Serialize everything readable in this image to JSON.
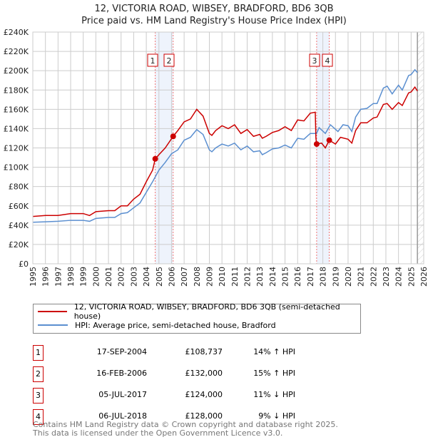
{
  "chart_data": {
    "type": "line",
    "title": "12, VICTORIA ROAD, WIBSEY, BRADFORD, BD6 3QB",
    "subtitle": "Price paid vs. HM Land Registry's House Price Index (HPI)",
    "xlim": [
      1995,
      2026
    ],
    "ylim": [
      0,
      240000
    ],
    "y_ticks": [
      "£0",
      "£20K",
      "£40K",
      "£60K",
      "£80K",
      "£100K",
      "£120K",
      "£140K",
      "£160K",
      "£180K",
      "£200K",
      "£220K",
      "£240K"
    ],
    "x_ticks": [
      "1995",
      "1996",
      "1997",
      "1998",
      "1999",
      "2000",
      "2001",
      "2002",
      "2003",
      "2004",
      "2005",
      "2006",
      "2007",
      "2008",
      "2009",
      "2010",
      "2011",
      "2012",
      "2013",
      "2014",
      "2015",
      "2016",
      "2017",
      "2018",
      "2019",
      "2020",
      "2021",
      "2022",
      "2023",
      "2024",
      "2025",
      "2026"
    ],
    "grid": true,
    "series": [
      {
        "name": "12, VICTORIA ROAD, WIBSEY, BRADFORD, BD6 3QB (semi-detached house)",
        "color": "#cc0000",
        "x": [
          1995,
          1996,
          1997,
          1998,
          1999,
          1999.5,
          2000,
          2001,
          2001.5,
          2002,
          2002.5,
          2003,
          2003.5,
          2004,
          2004.5,
          2004.71,
          2005,
          2005.5,
          2006.13,
          2006.5,
          2007,
          2007.5,
          2008,
          2008.5,
          2009,
          2009.2,
          2009.5,
          2010,
          2010.5,
          2011,
          2011.5,
          2012,
          2012.5,
          2013,
          2013.2,
          2013.5,
          2014,
          2014.5,
          2015,
          2015.5,
          2016,
          2016.5,
          2017,
          2017.4,
          2017.45,
          2017.51,
          2017.9,
          2018.2,
          2018.51,
          2019,
          2019.4,
          2020,
          2020.3,
          2020.6,
          2021,
          2021.5,
          2022,
          2022.3,
          2022.8,
          2023.1,
          2023.5,
          2024,
          2024.3,
          2024.8,
          2025,
          2025.3,
          2025.5
        ],
        "y": [
          49000,
          50000,
          50000,
          52000,
          52000,
          50000,
          54000,
          55000,
          55000,
          60000,
          60000,
          67000,
          72000,
          85000,
          97000,
          108737,
          113000,
          120000,
          132000,
          138000,
          147000,
          150000,
          160000,
          153000,
          135000,
          133000,
          138000,
          143000,
          140000,
          144000,
          135000,
          139000,
          132000,
          134000,
          130000,
          132000,
          136000,
          138000,
          142000,
          138000,
          149000,
          148000,
          156000,
          157000,
          130000,
          124000,
          125000,
          120000,
          128000,
          124000,
          131000,
          129000,
          125000,
          138000,
          146000,
          146000,
          151000,
          152000,
          165000,
          166000,
          160000,
          167000,
          164000,
          177000,
          178000,
          183000,
          179000
        ]
      },
      {
        "name": "HPI: Average price, semi-detached house, Bradford",
        "color": "#5b8fd0",
        "x": [
          1995,
          1996,
          1997,
          1998,
          1999,
          1999.5,
          2000,
          2001,
          2001.5,
          2002,
          2002.5,
          2003,
          2003.5,
          2004,
          2004.5,
          2005,
          2005.5,
          2006,
          2006.5,
          2007,
          2007.5,
          2008,
          2008.5,
          2009,
          2009.2,
          2009.5,
          2010,
          2010.5,
          2011,
          2011.5,
          2012,
          2012.5,
          2013,
          2013.2,
          2013.5,
          2014,
          2014.5,
          2015,
          2015.5,
          2016,
          2016.5,
          2017,
          2017.5,
          2017.7,
          2018.2,
          2018.6,
          2019.2,
          2019.6,
          2020,
          2020.3,
          2020.6,
          2021,
          2021.5,
          2022,
          2022.3,
          2022.8,
          2023.1,
          2023.5,
          2024,
          2024.3,
          2024.8,
          2025,
          2025.3,
          2025.5
        ],
        "y": [
          43000,
          43500,
          44000,
          45000,
          45000,
          44000,
          47000,
          48000,
          48000,
          52000,
          53000,
          58000,
          63000,
          74000,
          85000,
          97000,
          105000,
          114000,
          118000,
          128000,
          131000,
          139000,
          134000,
          118000,
          116000,
          120000,
          124000,
          122000,
          125000,
          118000,
          122000,
          116000,
          117000,
          113000,
          115000,
          119000,
          120000,
          123000,
          120000,
          130000,
          129000,
          135000,
          135000,
          141000,
          135000,
          144000,
          137000,
          144000,
          143000,
          137000,
          152000,
          160000,
          161000,
          166000,
          166000,
          182000,
          184000,
          176000,
          185000,
          180000,
          195000,
          196000,
          201000,
          198000
        ]
      }
    ],
    "sales": [
      {
        "label": "1",
        "date": "17-SEP-2004",
        "x": 2004.71,
        "price": "£108,737",
        "price_value": 108737,
        "hpi": "14% ↑ HPI"
      },
      {
        "label": "2",
        "date": "16-FEB-2006",
        "x": 2006.13,
        "price": "£132,000",
        "price_value": 132000,
        "hpi": "15% ↑ HPI"
      },
      {
        "label": "3",
        "date": "05-JUL-2017",
        "x": 2017.51,
        "price": "£124,000",
        "price_value": 124000,
        "hpi": "11% ↓ HPI"
      },
      {
        "label": "4",
        "date": "06-JUL-2018",
        "x": 2018.51,
        "price": "£128,000",
        "price_value": 128000,
        "hpi": "9% ↓ HPI"
      }
    ],
    "forecast_start": 2025.5,
    "legend_position": "bottom"
  },
  "footer": {
    "line1": "Contains HM Land Registry data © Crown copyright and database right 2025.",
    "line2": "This data is licensed under the Open Government Licence v3.0."
  }
}
